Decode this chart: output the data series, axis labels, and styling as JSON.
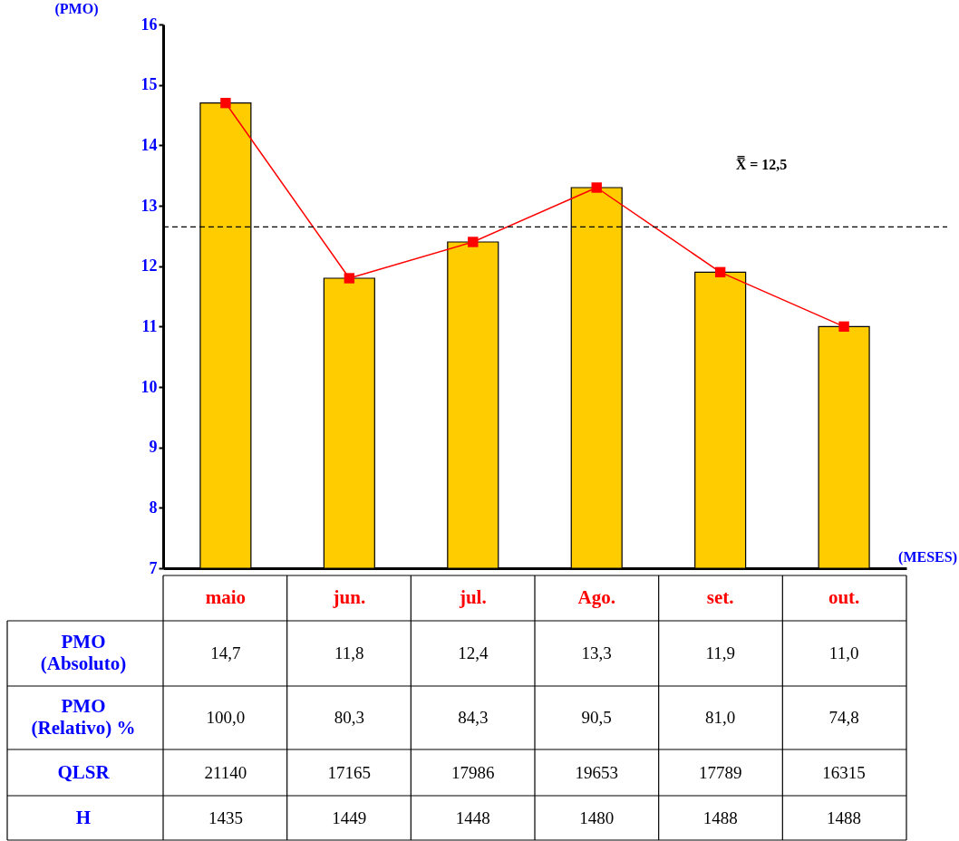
{
  "chart_data": {
    "type": "bar",
    "categories": [
      "maio",
      "jun.",
      "jul.",
      "Ago.",
      "set.",
      "out."
    ],
    "series": [
      {
        "color": "#ffcc00",
        "values": [
          14.7,
          11.8,
          12.4,
          13.3,
          11.9,
          11.0
        ],
        "value_labels": [
          "14,7",
          "11,8",
          "12,4",
          "13,3",
          "11,9",
          "11,0"
        ]
      },
      {
        "type": "line",
        "color": "#ff0000",
        "marker": "square",
        "line_style": "solid",
        "values": [
          14.7,
          11.8,
          12.4,
          13.3,
          11.9,
          11.0
        ]
      }
    ],
    "ylabel": "(PMO)",
    "xlabel": "(MESES)",
    "ylim": [
      7,
      16
    ],
    "yticks": [
      7,
      8,
      9,
      10,
      11,
      12,
      13,
      14,
      15,
      16
    ],
    "grid": false,
    "ref_lines": [
      {
        "axis": "y",
        "value": 12.65,
        "line_style": "dashed",
        "color": "#000000"
      }
    ],
    "annotations": [
      "X̿ = 12,5",
      "PMO (Absoluto)",
      "PMO (Relativo) %",
      "100,0",
      "80,3",
      "84,3",
      "90,5",
      "81,0",
      "74,8",
      "QLSR",
      "21140",
      "17165",
      "17986",
      "19653",
      "17789",
      "16315",
      "H",
      "1435",
      "1449",
      "1448",
      "1480",
      "1488",
      "1488"
    ]
  }
}
